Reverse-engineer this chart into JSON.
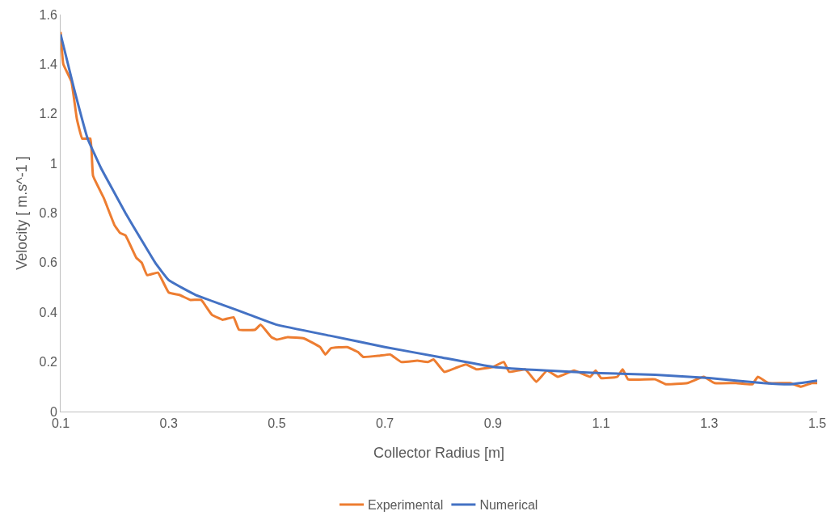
{
  "chart_data": {
    "type": "line",
    "xlabel": "Collector Radius [m]",
    "ylabel": "Velocity [ m.s^-1 ]",
    "xlim": [
      0.1,
      1.5
    ],
    "xticks": [
      0.1,
      0.3,
      0.5,
      0.7,
      0.9,
      1.1,
      1.3,
      1.5
    ],
    "ylim": [
      0,
      1.6
    ],
    "yticks": [
      0,
      0.2,
      0.4,
      0.6,
      0.8,
      1,
      1.2,
      1.4,
      1.6
    ],
    "grid": false,
    "legend": "bottom",
    "marker": "none",
    "line_style": "solid",
    "series": [
      {
        "name": "Experimental",
        "color": "#ed7d31",
        "x": [
          0.1,
          0.105,
          0.12,
          0.13,
          0.14,
          0.155,
          0.16,
          0.18,
          0.2,
          0.21,
          0.22,
          0.24,
          0.25,
          0.26,
          0.28,
          0.3,
          0.32,
          0.34,
          0.36,
          0.38,
          0.4,
          0.42,
          0.43,
          0.46,
          0.47,
          0.49,
          0.5,
          0.52,
          0.55,
          0.58,
          0.59,
          0.6,
          0.63,
          0.65,
          0.66,
          0.69,
          0.71,
          0.73,
          0.76,
          0.78,
          0.79,
          0.81,
          0.83,
          0.85,
          0.87,
          0.9,
          0.92,
          0.93,
          0.96,
          0.98,
          1.0,
          1.02,
          1.05,
          1.08,
          1.09,
          1.1,
          1.13,
          1.14,
          1.15,
          1.2,
          1.22,
          1.26,
          1.29,
          1.31,
          1.35,
          1.38,
          1.39,
          1.41,
          1.45,
          1.47,
          1.49,
          1.5
        ],
        "values": [
          1.53,
          1.4,
          1.33,
          1.18,
          1.1,
          1.1,
          0.95,
          0.86,
          0.75,
          0.72,
          0.71,
          0.62,
          0.6,
          0.55,
          0.56,
          0.48,
          0.47,
          0.45,
          0.45,
          0.39,
          0.37,
          0.38,
          0.33,
          0.33,
          0.35,
          0.3,
          0.29,
          0.3,
          0.295,
          0.26,
          0.23,
          0.255,
          0.26,
          0.24,
          0.22,
          0.225,
          0.23,
          0.2,
          0.205,
          0.2,
          0.21,
          0.16,
          0.175,
          0.19,
          0.17,
          0.18,
          0.2,
          0.16,
          0.17,
          0.12,
          0.165,
          0.14,
          0.165,
          0.14,
          0.165,
          0.135,
          0.14,
          0.17,
          0.13,
          0.13,
          0.11,
          0.115,
          0.14,
          0.115,
          0.115,
          0.11,
          0.14,
          0.115,
          0.115,
          0.1,
          0.115,
          0.115
        ]
      },
      {
        "name": "Numerical",
        "color": "#4472c4",
        "x": [
          0.1,
          0.125,
          0.15,
          0.175,
          0.2,
          0.22,
          0.25,
          0.275,
          0.3,
          0.35,
          0.4,
          0.45,
          0.5,
          0.6,
          0.7,
          0.8,
          0.9,
          1.0,
          1.1,
          1.2,
          1.3,
          1.4,
          1.45,
          1.5
        ],
        "values": [
          1.52,
          1.3,
          1.1,
          0.98,
          0.88,
          0.8,
          0.69,
          0.6,
          0.53,
          0.47,
          0.43,
          0.39,
          0.35,
          0.305,
          0.26,
          0.22,
          0.18,
          0.165,
          0.155,
          0.148,
          0.135,
          0.115,
          0.11,
          0.125
        ]
      }
    ]
  }
}
